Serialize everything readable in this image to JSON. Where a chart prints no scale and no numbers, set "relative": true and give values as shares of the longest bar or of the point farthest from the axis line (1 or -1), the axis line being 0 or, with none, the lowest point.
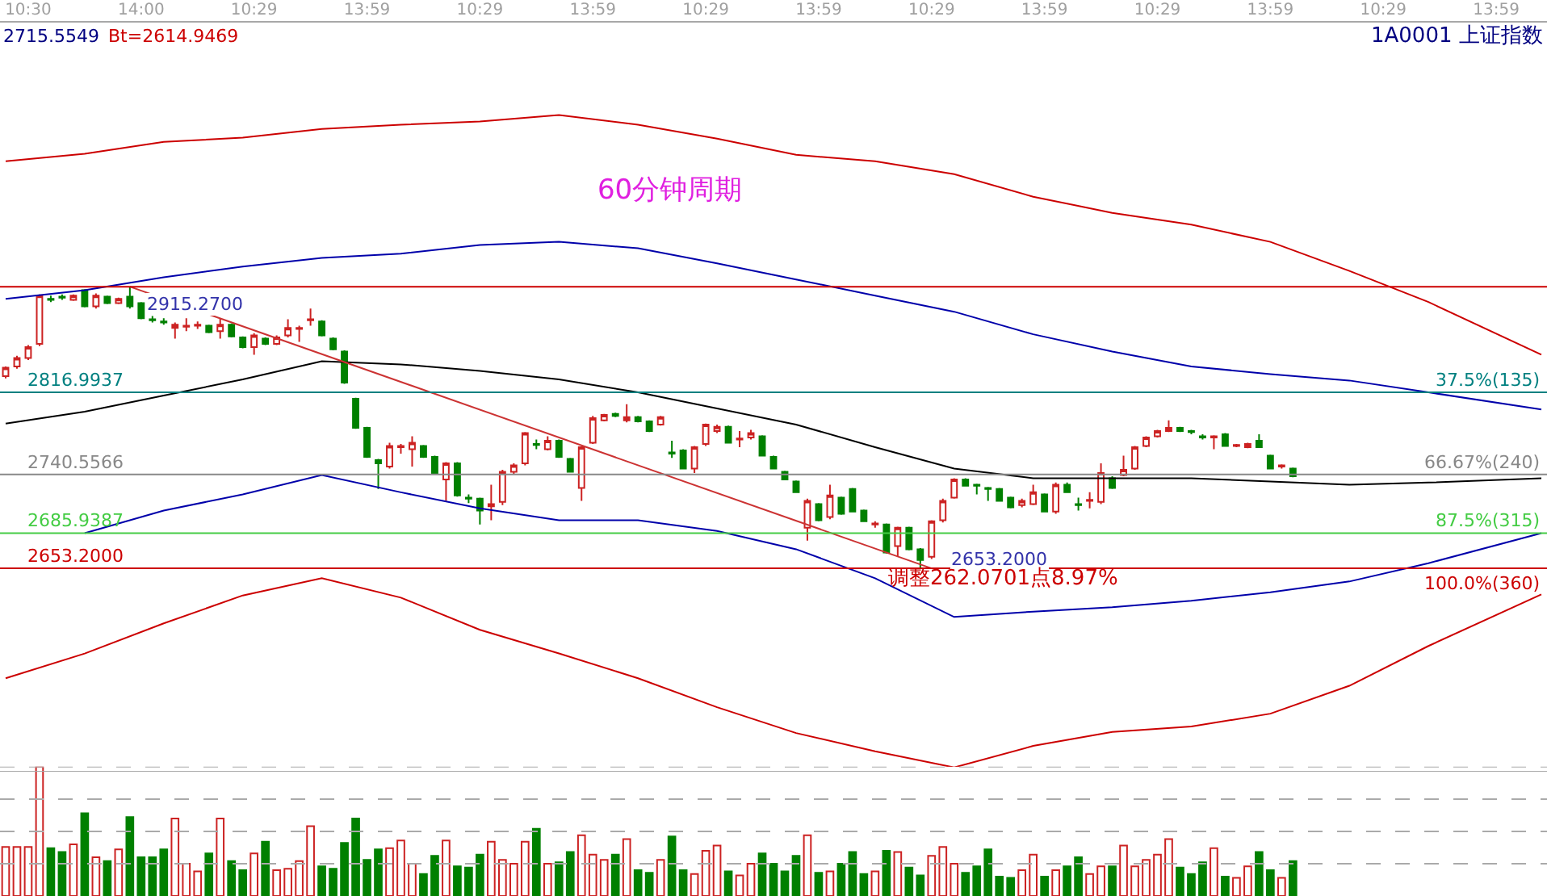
{
  "chart_data": [
    {
      "type": "candlestick",
      "title": "60分钟周期",
      "annotations": [
        "2715.5549",
        "Bt=2614.9469",
        "1A0001 上证指数",
        {
          "text": "2915.2700",
          "y": 2915.27
        },
        {
          "text": "2653.2000",
          "y": 2653.2
        },
        "调整262.0701点8.97%",
        {
          "text": "37.5%(135)",
          "y": 2816.9937
        },
        {
          "text": "66.67%(240)",
          "y": 2740.5566
        },
        {
          "text": "87.5%(315)",
          "y": 2685.9387
        },
        {
          "text": "100.0%(360)",
          "y": 2653.2
        }
      ],
      "categories": [
        null,
        null,
        "10:30",
        null,
        null,
        null,
        null,
        null,
        null,
        null,
        null,
        null,
        "14:00",
        null,
        null,
        null,
        null,
        null,
        null,
        null,
        null,
        null,
        "10:29",
        null,
        null,
        null,
        null,
        null,
        null,
        null,
        null,
        null,
        "13:59",
        null,
        null,
        null,
        null,
        null,
        null,
        null,
        null,
        null,
        "10:29",
        null,
        null,
        null,
        null,
        null,
        null,
        null,
        null,
        null,
        "13:59",
        null,
        null,
        null,
        null,
        null,
        null,
        null,
        null,
        null,
        "10:29",
        null,
        null,
        null,
        null,
        null,
        null,
        null,
        null,
        null,
        "13:59",
        null,
        null,
        null,
        null,
        null,
        null,
        null,
        null,
        null,
        "10:29",
        null,
        null,
        null,
        null,
        null,
        null,
        null,
        null,
        null,
        "13:59",
        null,
        null,
        null,
        null,
        null,
        null,
        null,
        null,
        null,
        "10:29",
        null,
        null,
        null,
        null,
        null,
        null,
        null,
        null,
        null,
        "13:59",
        null,
        null,
        null,
        null,
        null,
        null,
        null,
        null,
        null,
        "10:29",
        null,
        null,
        null,
        null,
        null,
        null,
        null,
        null,
        null,
        "13:59",
        null,
        null,
        null,
        null
      ],
      "ohlc": [
        [
          2832,
          2841,
          2830,
          2840
        ],
        [
          2841,
          2851,
          2839,
          2849
        ],
        [
          2849,
          2861,
          2847,
          2859
        ],
        [
          2862,
          2908,
          2860,
          2907
        ],
        [
          2904,
          2907,
          2901,
          2903
        ],
        [
          2906,
          2908,
          2903,
          2905
        ],
        [
          2903,
          2908,
          2902,
          2907
        ],
        [
          2912,
          2913,
          2896,
          2897
        ],
        [
          2897,
          2909,
          2895,
          2907
        ],
        [
          2906,
          2907,
          2899,
          2900
        ],
        [
          2900,
          2905,
          2899,
          2904
        ],
        [
          2906,
          2915.27,
          2895,
          2897
        ],
        [
          2900,
          2901,
          2885,
          2886
        ],
        [
          2885,
          2888,
          2882,
          2884
        ],
        [
          2883,
          2886,
          2880,
          2882
        ],
        [
          2877,
          2882,
          2867,
          2880
        ],
        [
          2878,
          2886,
          2874,
          2879
        ],
        [
          2879,
          2883,
          2876,
          2880
        ],
        [
          2879,
          2880,
          2872,
          2873
        ],
        [
          2874,
          2886,
          2867,
          2880
        ],
        [
          2880,
          2881,
          2868,
          2869
        ],
        [
          2868,
          2869,
          2858,
          2859
        ],
        [
          2859,
          2872,
          2852,
          2870
        ],
        [
          2867,
          2868,
          2861,
          2862
        ],
        [
          2862,
          2870,
          2861,
          2868
        ],
        [
          2870,
          2885,
          2868,
          2877
        ],
        [
          2876,
          2879,
          2864,
          2877
        ],
        [
          2884,
          2895,
          2879,
          2885
        ],
        [
          2883,
          2884,
          2869,
          2870
        ],
        [
          2867,
          2868,
          2856,
          2857
        ],
        [
          2855,
          2856,
          2825,
          2826
        ],
        [
          2811,
          2812,
          2783,
          2784
        ],
        [
          2784,
          2785,
          2756,
          2757
        ],
        [
          2754,
          2755,
          2727,
          2751
        ],
        [
          2748,
          2770,
          2746,
          2767
        ],
        [
          2766,
          2769,
          2760,
          2767
        ],
        [
          2764,
          2776,
          2748,
          2770
        ],
        [
          2767,
          2768,
          2756,
          2757
        ],
        [
          2757,
          2758,
          2741,
          2742
        ],
        [
          2736,
          2752,
          2716,
          2751
        ],
        [
          2751,
          2752,
          2720,
          2721
        ],
        [
          2719,
          2722,
          2714,
          2718
        ],
        [
          2718,
          2719,
          2694,
          2707
        ],
        [
          2711,
          2731,
          2698,
          2713
        ],
        [
          2715,
          2745,
          2712,
          2743
        ],
        [
          2743,
          2751,
          2741,
          2749
        ],
        [
          2751,
          2780,
          2749,
          2779
        ],
        [
          2769,
          2773,
          2764,
          2768
        ],
        [
          2764,
          2776,
          2763,
          2772
        ],
        [
          2772,
          2773,
          2756,
          2757
        ],
        [
          2755,
          2756,
          2743,
          2743
        ],
        [
          2728,
          2766,
          2716,
          2766
        ],
        [
          2770,
          2795,
          2769,
          2793
        ],
        [
          2791,
          2797,
          2790,
          2796
        ],
        [
          2797,
          2798,
          2794,
          2795
        ],
        [
          2791,
          2806,
          2789,
          2794
        ],
        [
          2794,
          2795,
          2789,
          2790
        ],
        [
          2790,
          2791,
          2780,
          2781
        ],
        [
          2787,
          2795,
          2786,
          2794
        ],
        [
          2761,
          2772,
          2756,
          2760
        ],
        [
          2763,
          2764,
          2746,
          2746
        ],
        [
          2746,
          2767,
          2742,
          2766
        ],
        [
          2769,
          2788,
          2767,
          2787
        ],
        [
          2781,
          2787,
          2779,
          2785
        ],
        [
          2785,
          2786,
          2770,
          2770
        ],
        [
          2773,
          2781,
          2766,
          2774
        ],
        [
          2775,
          2782,
          2773,
          2779
        ],
        [
          2776,
          2777,
          2758,
          2758
        ],
        [
          2757,
          2758,
          2746,
          2746
        ],
        [
          2743,
          2744,
          2736,
          2736
        ],
        [
          2734,
          2735,
          2724,
          2724
        ],
        [
          2691,
          2718,
          2679,
          2716
        ],
        [
          2713,
          2714,
          2697,
          2698
        ],
        [
          2701,
          2731,
          2699,
          2721
        ],
        [
          2719,
          2720,
          2703,
          2704
        ],
        [
          2727,
          2728,
          2706,
          2706
        ],
        [
          2707,
          2708,
          2697,
          2697
        ],
        [
          2694,
          2697,
          2691,
          2695
        ],
        [
          2694,
          2695,
          2667,
          2668
        ],
        [
          2674,
          2692,
          2664,
          2691
        ],
        [
          2691,
          2692,
          2670,
          2671
        ],
        [
          2671,
          2672,
          2653.2,
          2661
        ],
        [
          2664,
          2698,
          2662,
          2697
        ],
        [
          2698,
          2718,
          2696,
          2716
        ],
        [
          2719,
          2737,
          2718,
          2736
        ],
        [
          2736,
          2737,
          2730,
          2730
        ],
        [
          2731,
          2732,
          2722,
          2730
        ],
        [
          2728,
          2729,
          2716,
          2727
        ],
        [
          2727,
          2728,
          2716,
          2716
        ],
        [
          2719,
          2720,
          2709,
          2710
        ],
        [
          2712,
          2718,
          2710,
          2716
        ],
        [
          2713,
          2731,
          2712,
          2724
        ],
        [
          2722,
          2723,
          2706,
          2706
        ],
        [
          2706,
          2733,
          2704,
          2731
        ],
        [
          2731,
          2733,
          2724,
          2724
        ],
        [
          2713,
          2719,
          2707,
          2712
        ],
        [
          2716,
          2724,
          2709,
          2717
        ],
        [
          2715,
          2751,
          2713,
          2742
        ],
        [
          2737,
          2739,
          2727,
          2728
        ],
        [
          2740,
          2758,
          2739,
          2745
        ],
        [
          2746,
          2767,
          2745,
          2766
        ],
        [
          2767,
          2776,
          2766,
          2775
        ],
        [
          2776,
          2782,
          2775,
          2781
        ],
        [
          2781,
          2791,
          2780,
          2784
        ],
        [
          2784,
          2785,
          2780,
          2781
        ],
        [
          2781,
          2782,
          2778,
          2780
        ],
        [
          2776,
          2778,
          2773,
          2775
        ],
        [
          2775,
          2777,
          2764,
          2776
        ],
        [
          2778,
          2779,
          2767,
          2767
        ],
        [
          2767,
          2769,
          2766,
          2768
        ],
        [
          2766,
          2770,
          2765,
          2769
        ],
        [
          2772,
          2778,
          2766,
          2766
        ],
        [
          2758,
          2759,
          2746,
          2746
        ],
        [
          2748,
          2750,
          2746,
          2749
        ],
        [
          2746,
          2747,
          2738,
          2739
        ],
        null,
        null,
        null,
        null,
        null,
        null,
        null,
        null,
        null,
        null,
        null,
        null,
        null,
        null,
        null,
        null,
        null,
        null,
        null,
        null,
        null,
        null
      ],
      "colors": [
        "#cc2222",
        "#cc2222",
        "#cc2222",
        "#cc2222",
        "#008000",
        "#008000",
        "#cc2222",
        "#008000",
        "#cc2222",
        "#008000",
        "#cc2222",
        "#008000",
        "#008000",
        "#008000",
        "#008000",
        "#cc2222",
        "#cc2222",
        "#cc2222",
        "#008000",
        "#cc2222",
        "#008000",
        "#008000",
        "#cc2222",
        "#008000",
        "#cc2222",
        "#cc2222",
        "#cc2222",
        "#cc2222",
        "#008000",
        "#008000",
        "#008000",
        "#008000",
        "#008000",
        "#008000",
        "#cc2222",
        "#cc2222",
        "#cc2222",
        "#008000",
        "#008000",
        "#cc2222",
        "#008000",
        "#008000",
        "#008000",
        "#cc2222",
        "#cc2222",
        "#cc2222",
        "#cc2222",
        "#008000",
        "#cc2222",
        "#008000",
        "#008000",
        "#cc2222",
        "#cc2222",
        "#cc2222",
        "#008000",
        "#cc2222",
        "#008000",
        "#008000",
        "#cc2222",
        "#008000",
        "#008000",
        "#cc2222",
        "#cc2222",
        "#cc2222",
        "#008000",
        "#cc2222",
        "#cc2222",
        "#008000",
        "#008000",
        "#008000",
        "#008000",
        "#cc2222",
        "#008000",
        "#cc2222",
        "#008000",
        "#008000",
        "#008000",
        "#cc2222",
        "#008000",
        "#cc2222",
        "#008000",
        "#008000",
        "#cc2222",
        "#cc2222",
        "#cc2222",
        "#008000",
        "#008000",
        "#008000",
        "#008000",
        "#008000",
        "#cc2222",
        "#cc2222",
        "#008000",
        "#cc2222",
        "#008000",
        "#008000",
        "#cc2222",
        "#cc2222",
        "#008000",
        "#cc2222",
        "#cc2222",
        "#cc2222",
        "#cc2222",
        "#cc2222",
        "#008000",
        "#008000",
        "#008000",
        "#cc2222",
        "#008000",
        "#cc2222",
        "#cc2222",
        "#008000",
        "#008000",
        "#cc2222",
        "#008000",
        null,
        null,
        null,
        null,
        null,
        null,
        null,
        null,
        null,
        null,
        null,
        null,
        null,
        null,
        null,
        null,
        null,
        null,
        null,
        null,
        null,
        null
      ],
      "series": [
        {
          "type": "line",
          "color": "#cc0000",
          "values": [
            3032,
            null,
            null,
            null,
            null,
            null,
            null,
            3039,
            null,
            null,
            null,
            null,
            null,
            null,
            3050,
            null,
            null,
            null,
            null,
            null,
            null,
            3054,
            null,
            null,
            null,
            null,
            null,
            null,
            3062,
            null,
            null,
            null,
            null,
            null,
            null,
            3066,
            null,
            null,
            null,
            null,
            null,
            null,
            3069,
            null,
            null,
            null,
            null,
            null,
            null,
            3075,
            null,
            null,
            null,
            null,
            null,
            null,
            3066,
            null,
            null,
            null,
            null,
            null,
            null,
            3053,
            null,
            null,
            null,
            null,
            null,
            null,
            3038,
            null,
            null,
            null,
            null,
            null,
            null,
            3032,
            null,
            null,
            null,
            null,
            null,
            null,
            3020,
            null,
            null,
            null,
            null,
            null,
            null,
            2999,
            null,
            null,
            null,
            null,
            null,
            null,
            2984,
            null,
            null,
            null,
            null,
            null,
            null,
            2973,
            null,
            null,
            null,
            null,
            null,
            null,
            2957,
            null,
            null,
            null,
            null,
            null,
            null,
            2930,
            null,
            null,
            null,
            null,
            null,
            null,
            2901,
            null,
            null,
            null,
            null,
            null,
            null,
            null,
            null,
            null,
            2852
          ]
        },
        {
          "type": "line",
          "color": "#0000aa",
          "values": [
            2904,
            null,
            null,
            null,
            null,
            null,
            null,
            2912,
            null,
            null,
            null,
            null,
            null,
            null,
            2924,
            null,
            null,
            null,
            null,
            null,
            null,
            2934,
            null,
            null,
            null,
            null,
            null,
            null,
            2942,
            null,
            null,
            null,
            null,
            null,
            null,
            2946,
            null,
            null,
            null,
            null,
            null,
            null,
            2954,
            null,
            null,
            null,
            null,
            null,
            null,
            2957,
            null,
            null,
            null,
            null,
            null,
            null,
            2951,
            null,
            null,
            null,
            null,
            null,
            null,
            2937,
            null,
            null,
            null,
            null,
            null,
            null,
            2922,
            null,
            null,
            null,
            null,
            null,
            null,
            2907,
            null,
            null,
            null,
            null,
            null,
            null,
            2892,
            null,
            null,
            null,
            null,
            null,
            null,
            2871,
            null,
            null,
            null,
            null,
            null,
            null,
            2855,
            null,
            null,
            null,
            null,
            null,
            null,
            2841,
            null,
            null,
            null,
            null,
            null,
            null,
            2834,
            null,
            null,
            null,
            null,
            null,
            null,
            2828,
            null,
            null,
            null,
            null,
            null,
            null,
            2817,
            null,
            null,
            null,
            null,
            null,
            null,
            null,
            null,
            null,
            2801
          ]
        },
        {
          "type": "line",
          "color": "#000000",
          "values": [
            2788,
            null,
            null,
            null,
            null,
            null,
            null,
            2799,
            null,
            null,
            null,
            null,
            null,
            null,
            2814,
            null,
            null,
            null,
            null,
            null,
            null,
            2829,
            null,
            null,
            null,
            null,
            null,
            null,
            2846,
            null,
            null,
            null,
            null,
            null,
            null,
            2843,
            null,
            null,
            null,
            null,
            null,
            null,
            2837,
            null,
            null,
            null,
            null,
            null,
            null,
            2829,
            null,
            null,
            null,
            null,
            null,
            null,
            2817,
            null,
            null,
            null,
            null,
            null,
            null,
            2802,
            null,
            null,
            null,
            null,
            null,
            null,
            2787,
            null,
            null,
            null,
            null,
            null,
            null,
            2766,
            null,
            null,
            null,
            null,
            null,
            null,
            2746,
            null,
            null,
            null,
            null,
            null,
            null,
            2737,
            null,
            null,
            null,
            null,
            null,
            null,
            2737,
            null,
            null,
            null,
            null,
            null,
            null,
            2737,
            null,
            null,
            null,
            null,
            null,
            null,
            2734,
            null,
            null,
            null,
            null,
            null,
            null,
            2731,
            null,
            null,
            null,
            null,
            null,
            null,
            2733,
            null,
            null,
            null,
            null,
            null,
            null,
            null,
            null,
            null,
            2737
          ]
        },
        {
          "type": "line",
          "color": "#0000aa",
          "values": [
            null,
            null,
            null,
            null,
            null,
            null,
            null,
            2686,
            null,
            null,
            null,
            null,
            null,
            null,
            2707,
            null,
            null,
            null,
            null,
            null,
            null,
            2722,
            null,
            null,
            null,
            null,
            null,
            null,
            2740,
            null,
            null,
            null,
            null,
            null,
            null,
            2724,
            null,
            null,
            null,
            null,
            null,
            null,
            2709,
            null,
            null,
            null,
            null,
            null,
            null,
            2698,
            null,
            null,
            null,
            null,
            null,
            null,
            2698,
            null,
            null,
            null,
            null,
            null,
            null,
            2688,
            null,
            null,
            null,
            null,
            null,
            null,
            2671,
            null,
            null,
            null,
            null,
            null,
            null,
            2644,
            null,
            null,
            null,
            null,
            null,
            null,
            2608,
            null,
            null,
            null,
            null,
            null,
            null,
            2613,
            null,
            null,
            null,
            null,
            null,
            null,
            2617,
            null,
            null,
            null,
            null,
            null,
            null,
            2623,
            null,
            null,
            null,
            null,
            null,
            null,
            2631,
            null,
            null,
            null,
            null,
            null,
            null,
            2641,
            null,
            null,
            null,
            null,
            null,
            null,
            2658,
            null,
            null,
            null,
            null,
            null,
            null,
            null,
            null,
            null,
            2686
          ]
        },
        {
          "type": "line",
          "color": "#cc0000",
          "values": [
            2551,
            null,
            null,
            null,
            null,
            null,
            null,
            2574,
            null,
            null,
            null,
            null,
            null,
            null,
            2602,
            null,
            null,
            null,
            null,
            null,
            null,
            2628,
            null,
            null,
            null,
            null,
            null,
            null,
            2644,
            null,
            null,
            null,
            null,
            null,
            null,
            2626,
            null,
            null,
            null,
            null,
            null,
            null,
            2596,
            null,
            null,
            null,
            null,
            null,
            null,
            2574,
            null,
            null,
            null,
            null,
            null,
            null,
            2551,
            null,
            null,
            null,
            null,
            null,
            null,
            2524,
            null,
            null,
            null,
            null,
            null,
            null,
            2500,
            null,
            null,
            null,
            null,
            null,
            null,
            2483,
            null,
            null,
            null,
            null,
            null,
            null,
            2468,
            null,
            null,
            null,
            null,
            null,
            null,
            2488,
            null,
            null,
            null,
            null,
            null,
            null,
            2501,
            null,
            null,
            null,
            null,
            null,
            null,
            2506,
            null,
            null,
            null,
            null,
            null,
            null,
            2518,
            null,
            null,
            null,
            null,
            null,
            null,
            2544,
            null,
            null,
            null,
            null,
            null,
            null,
            2581,
            null,
            null,
            null,
            null,
            null,
            null,
            null,
            null,
            null,
            2629
          ]
        },
        {
          "type": "line",
          "color": "#cc3333",
          "values": [
            null,
            null,
            null,
            null,
            null,
            null,
            null,
            null,
            null,
            null,
            null,
            2915.27,
            null,
            null,
            null,
            null,
            null,
            null,
            null,
            null,
            null,
            null,
            null,
            null,
            null,
            null,
            null,
            null,
            null,
            null,
            null,
            null,
            null,
            null,
            null,
            null,
            null,
            null,
            null,
            null,
            null,
            null,
            null,
            null,
            null,
            null,
            null,
            null,
            null,
            null,
            null,
            null,
            null,
            null,
            null,
            null,
            null,
            null,
            null,
            null,
            null,
            null,
            null,
            null,
            null,
            null,
            null,
            null,
            null,
            null,
            null,
            null,
            null,
            null,
            null,
            null,
            null,
            null,
            null,
            null,
            null,
            null,
            2653.2,
            null,
            null,
            null,
            null,
            null,
            null,
            null,
            null,
            null,
            null,
            null,
            null,
            null,
            null,
            null,
            null,
            null,
            null,
            null,
            null,
            null,
            null,
            null,
            null,
            null,
            null,
            null,
            null,
            null,
            null,
            null,
            null,
            null,
            null,
            null,
            null,
            null,
            null,
            null,
            null,
            null,
            null,
            null,
            null,
            null,
            null,
            null,
            null,
            null,
            null,
            null,
            null,
            null,
            null
          ]
        }
      ],
      "ref_lines": [
        {
          "axis": "y",
          "value": 2915.27,
          "color": "#cc0000"
        },
        {
          "axis": "y",
          "value": 2816.9937,
          "label": "2816.9937",
          "color": "#008080"
        },
        {
          "axis": "y",
          "value": 2740.5566,
          "label": "2740.5566",
          "color": "#888888"
        },
        {
          "axis": "y",
          "value": 2685.9387,
          "label": "2685.9387",
          "color": "#44cc44"
        },
        {
          "axis": "y",
          "value": 2653.2,
          "label": "2653.2000",
          "color": "#cc0000"
        }
      ],
      "ylim": [
        2464,
        3161
      ],
      "tick_labels": "x"
    },
    {
      "type": "bar",
      "relative": true,
      "tick_labels": false,
      "categories": [
        null,
        null,
        null,
        null,
        null,
        null,
        null,
        null,
        null,
        null,
        null,
        null,
        null,
        null,
        null,
        null,
        null,
        null,
        null,
        null,
        null,
        null,
        null,
        null,
        null,
        null,
        null,
        null,
        null,
        null,
        null,
        null,
        null,
        null,
        null,
        null,
        null,
        null,
        null,
        null,
        null,
        null,
        null,
        null,
        null,
        null,
        null,
        null,
        null,
        null,
        null,
        null,
        null,
        null,
        null,
        null,
        null,
        null,
        null,
        null,
        null,
        null,
        null,
        null,
        null,
        null,
        null,
        null,
        null,
        null,
        null,
        null,
        null,
        null,
        null,
        null,
        null,
        null,
        null,
        null,
        null,
        null,
        null,
        null,
        null,
        null,
        null,
        null,
        null,
        null,
        null,
        null,
        null,
        null,
        null,
        null,
        null,
        null,
        null,
        null,
        null,
        null,
        null,
        null,
        null,
        null,
        null,
        null,
        null,
        null,
        null,
        null,
        null,
        null,
        null,
        null,
        null,
        null,
        null,
        null,
        null,
        null,
        null,
        null,
        null,
        null,
        null,
        null,
        null,
        null,
        null,
        null,
        null,
        null,
        null,
        null,
        null
      ],
      "values": [
        0.38,
        0.38,
        0.38,
        1,
        0.37,
        0.34,
        0.4,
        0.64,
        0.3,
        0.27,
        0.36,
        0.61,
        0.3,
        0.3,
        0.36,
        0.6,
        0.25,
        0.19,
        0.33,
        0.6,
        0.27,
        0.2,
        0.33,
        0.42,
        0.2,
        0.21,
        0.27,
        0.54,
        0.23,
        0.21,
        0.41,
        0.6,
        0.28,
        0.36,
        0.37,
        0.43,
        0.25,
        0.17,
        0.31,
        0.43,
        0.23,
        0.22,
        0.32,
        0.42,
        0.28,
        0.25,
        0.42,
        0.52,
        0.25,
        0.26,
        0.34,
        0.47,
        0.32,
        0.28,
        0.32,
        0.44,
        0.2,
        0.18,
        0.28,
        0.46,
        0.2,
        0.17,
        0.35,
        0.39,
        0.19,
        0.16,
        0.25,
        0.33,
        0.25,
        0.19,
        0.31,
        0.47,
        0.18,
        0.19,
        0.25,
        0.34,
        0.17,
        0.19,
        0.35,
        0.34,
        0.22,
        0.16,
        0.31,
        0.38,
        0.25,
        0.18,
        0.23,
        0.36,
        0.15,
        0.14,
        0.2,
        0.32,
        0.15,
        0.2,
        0.23,
        0.3,
        0.17,
        0.23,
        0.23,
        0.39,
        0.23,
        0.28,
        0.32,
        0.44,
        0.22,
        0.17,
        0.26,
        0.37,
        0.15,
        0.14,
        0.23,
        0.34,
        0.2,
        0.14,
        0.27,
        null,
        null,
        null,
        null,
        null,
        null,
        null,
        null,
        null,
        null,
        null,
        null,
        null,
        null,
        null,
        null,
        null,
        null,
        null,
        null,
        null,
        null
      ],
      "colors": [
        "#cc2222",
        "#cc2222",
        "#cc2222",
        "#cc2222",
        "#008000",
        "#008000",
        "#cc2222",
        "#008000",
        "#cc2222",
        "#008000",
        "#cc2222",
        "#008000",
        "#008000",
        "#008000",
        "#008000",
        "#cc2222",
        "#cc2222",
        "#cc2222",
        "#008000",
        "#cc2222",
        "#008000",
        "#008000",
        "#cc2222",
        "#008000",
        "#cc2222",
        "#cc2222",
        "#cc2222",
        "#cc2222",
        "#008000",
        "#008000",
        "#008000",
        "#008000",
        "#008000",
        "#008000",
        "#cc2222",
        "#cc2222",
        "#cc2222",
        "#008000",
        "#008000",
        "#cc2222",
        "#008000",
        "#008000",
        "#008000",
        "#cc2222",
        "#cc2222",
        "#cc2222",
        "#cc2222",
        "#008000",
        "#cc2222",
        "#008000",
        "#008000",
        "#cc2222",
        "#cc2222",
        "#cc2222",
        "#008000",
        "#cc2222",
        "#008000",
        "#008000",
        "#cc2222",
        "#008000",
        "#008000",
        "#cc2222",
        "#cc2222",
        "#cc2222",
        "#008000",
        "#cc2222",
        "#cc2222",
        "#008000",
        "#008000",
        "#008000",
        "#008000",
        "#cc2222",
        "#008000",
        "#cc2222",
        "#008000",
        "#008000",
        "#008000",
        "#cc2222",
        "#008000",
        "#cc2222",
        "#008000",
        "#008000",
        "#cc2222",
        "#cc2222",
        "#cc2222",
        "#008000",
        "#008000",
        "#008000",
        "#008000",
        "#008000",
        "#cc2222",
        "#cc2222",
        "#008000",
        "#cc2222",
        "#008000",
        "#008000",
        "#cc2222",
        "#cc2222",
        "#008000",
        "#cc2222",
        "#cc2222",
        "#cc2222",
        "#cc2222",
        "#cc2222",
        "#008000",
        "#008000",
        "#008000",
        "#cc2222",
        "#008000",
        "#cc2222",
        "#cc2222",
        "#008000",
        "#008000",
        "#cc2222",
        "#008000",
        null,
        null,
        null,
        null,
        null,
        null,
        null,
        null,
        null,
        null,
        null,
        null,
        null,
        null,
        null,
        null,
        null,
        null,
        null,
        null,
        null,
        null
      ],
      "ref_lines": [
        {
          "axis": "y",
          "value": 0.25,
          "color": "#aaaaaa",
          "line_style": "dashed"
        },
        {
          "axis": "y",
          "value": 0.5,
          "color": "#aaaaaa",
          "line_style": "dashed"
        },
        {
          "axis": "y",
          "value": 0.75,
          "color": "#aaaaaa",
          "line_style": "dashed"
        },
        {
          "axis": "y",
          "value": 1,
          "color": "#aaaaaa",
          "line_style": "dashed"
        }
      ]
    }
  ]
}
